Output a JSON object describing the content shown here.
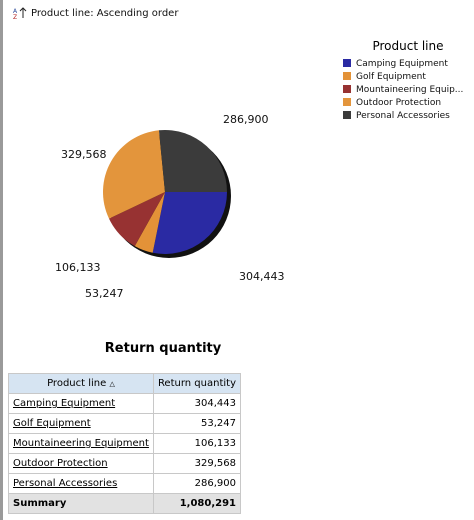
{
  "header": {
    "sort_label": "Product line: Ascending order"
  },
  "chart_data": {
    "type": "pie",
    "title": "Return quantity",
    "legend_title": "Product line",
    "categories": [
      "Camping Equipment",
      "Golf Equipment",
      "Mountaineering Equip...",
      "Outdoor Protection",
      "Personal Accessories"
    ],
    "values": [
      304443,
      53247,
      106133,
      329568,
      286900
    ],
    "value_labels": [
      "304,443",
      "53,247",
      "106,133",
      "329,568",
      "286,900"
    ],
    "colors": [
      "#2a2aa3",
      "#e39238",
      "#973232",
      "#e3953c",
      "#3b3b3b"
    ],
    "legend": "top-right"
  },
  "table": {
    "columns": [
      "Product line",
      "Return quantity"
    ],
    "rows": [
      [
        "Camping Equipment",
        "304,443"
      ],
      [
        "Golf Equipment",
        "53,247"
      ],
      [
        "Mountaineering Equipment",
        "106,133"
      ],
      [
        "Outdoor Protection",
        "329,568"
      ],
      [
        "Personal Accessories",
        "286,900"
      ]
    ],
    "summary": [
      "Summary",
      "1,080,291"
    ]
  }
}
